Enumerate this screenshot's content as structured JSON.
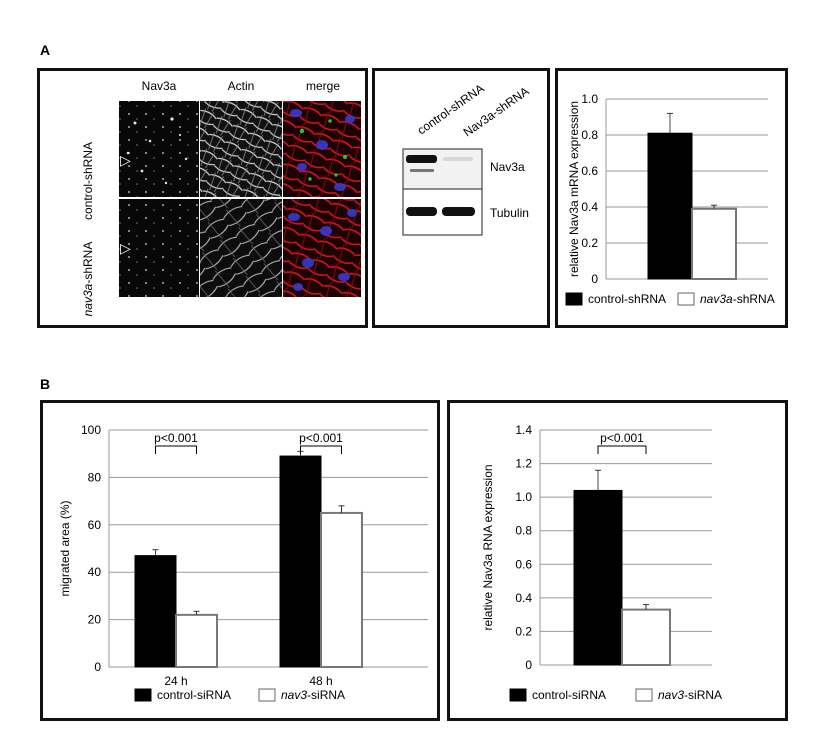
{
  "figure": {
    "panel_a_label": "A",
    "panel_b_label": "B"
  },
  "micrographs": {
    "column_headers": [
      "Nav3a",
      "Actin",
      "merge"
    ],
    "row_labels": [
      {
        "prefix": "",
        "italic": "",
        "main": "control-shRNA"
      },
      {
        "prefix": "",
        "italic": "nav3a",
        "main": "-shRNA"
      }
    ],
    "arrowhead_symbol": "▷"
  },
  "western_blot": {
    "lanes": [
      "control-shRNA",
      "Nav3a-shRNA"
    ],
    "bands": [
      "Nav3a",
      "Tubulin"
    ]
  },
  "colors": {
    "control": "#000000",
    "knockdown": "#ffffff",
    "cell_red": "#c0101c",
    "nucleus_blue": "#3a3acc",
    "green": "#22cc22"
  },
  "chart_data": [
    {
      "type": "bar",
      "id": "nav3a-mrna",
      "ylabel": "relative Nav3a mRNA expression",
      "ylim": [
        0,
        1.0
      ],
      "yticks": [
        "0",
        "0.2",
        "0.4",
        "0.6",
        "0.8",
        "1.0"
      ],
      "categories": [
        ""
      ],
      "series": [
        {
          "name": "control-shRNA",
          "values": [
            0.81
          ],
          "errors": [
            0.11
          ]
        },
        {
          "name": "nav3a-shRNA",
          "values": [
            0.39
          ],
          "errors": [
            0.02
          ]
        }
      ],
      "legend": [
        {
          "plain": "control-shRNA",
          "italic": "",
          "suffix": ""
        },
        {
          "plain": "",
          "italic": "nav3a",
          "suffix": "-shRNA"
        }
      ],
      "legend_position": "bottom",
      "grid": true
    },
    {
      "type": "bar",
      "id": "migrated-area",
      "ylabel": "migrated area (%)",
      "ylim": [
        0,
        100
      ],
      "yticks": [
        "0",
        "20",
        "40",
        "60",
        "80",
        "100"
      ],
      "categories": [
        "24 h",
        "48 h"
      ],
      "series": [
        {
          "name": "control-siRNA",
          "values": [
            47,
            89
          ],
          "errors": [
            2.5,
            2
          ]
        },
        {
          "name": "nav3-siRNA",
          "values": [
            22,
            65
          ],
          "errors": [
            1.5,
            3
          ]
        }
      ],
      "annotations": [
        "p<0.001",
        "p<0.001"
      ],
      "legend": [
        {
          "plain": "control-siRNA",
          "italic": "",
          "suffix": ""
        },
        {
          "plain": "",
          "italic": "nav3",
          "suffix": "-siRNA"
        }
      ],
      "legend_position": "bottom",
      "grid": true
    },
    {
      "type": "bar",
      "id": "nav3a-rna",
      "ylabel": "relative Nav3a RNA expression",
      "ylim": [
        0,
        1.4
      ],
      "yticks": [
        "0",
        "0.2",
        "0.4",
        "0.6",
        "0.8",
        "1.0",
        "1.2",
        "1.4"
      ],
      "categories": [
        ""
      ],
      "series": [
        {
          "name": "control-siRNA",
          "values": [
            1.04
          ],
          "errors": [
            0.12
          ]
        },
        {
          "name": "nav3-siRNA",
          "values": [
            0.33
          ],
          "errors": [
            0.03
          ]
        }
      ],
      "annotations": [
        "p<0.001"
      ],
      "legend": [
        {
          "plain": "control-siRNA",
          "italic": "",
          "suffix": ""
        },
        {
          "plain": "",
          "italic": "nav3",
          "suffix": "-siRNA"
        }
      ],
      "legend_position": "bottom",
      "grid": true
    }
  ]
}
